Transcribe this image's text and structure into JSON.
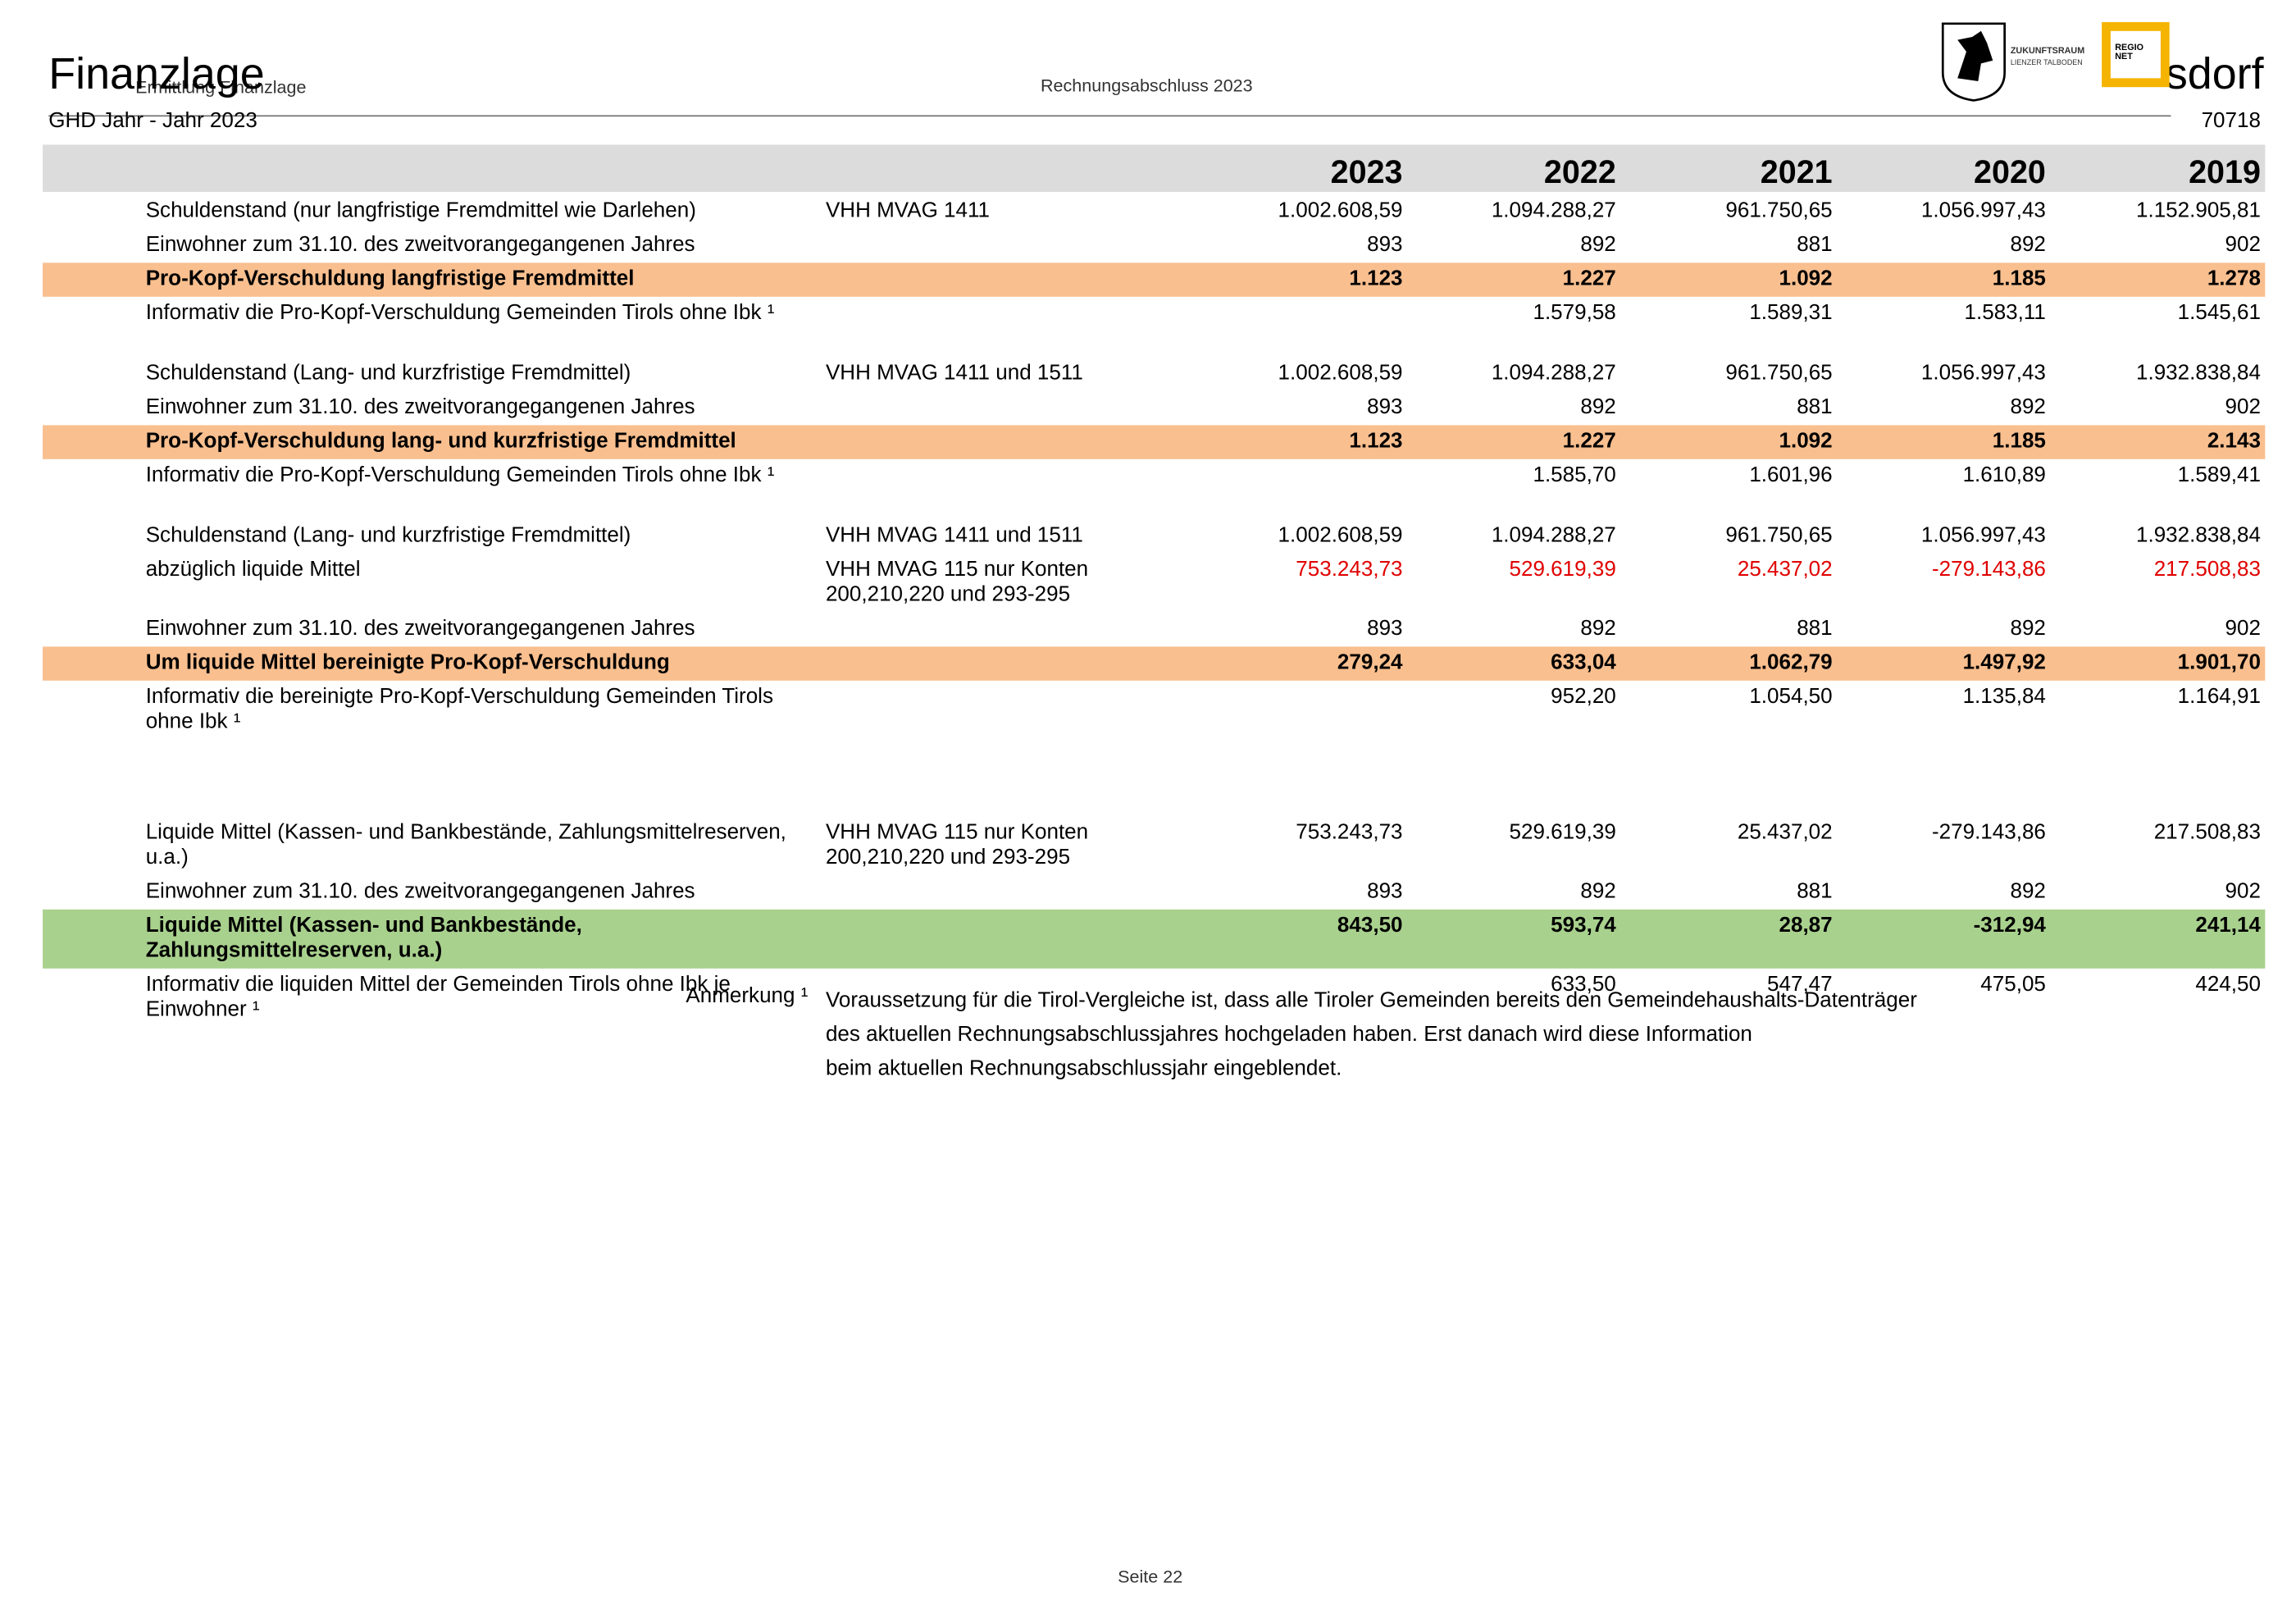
{
  "header": {
    "title": "Finanzlage",
    "breadcrumb": "Ermittlung Finanzlage",
    "report": "Rechnungsabschluss 2023",
    "subtitle": "GHD Jahr - Jahr 2023",
    "municipality": "sdorf",
    "code": "70718",
    "logo_text_1": "ZUKUNFTSRAUM",
    "logo_text_2": "LIENZER TALBODEN",
    "logo_text_3": "REGIO NET"
  },
  "table": {
    "years": [
      "2023",
      "2022",
      "2021",
      "2020",
      "2019"
    ],
    "sections": [
      {
        "rows": [
          {
            "label": "Schuldenstand (nur langfristige Fremdmittel wie Darlehen)",
            "ref": "VHH MVAG 1411",
            "style": "plain",
            "values": [
              "1.002.608,59",
              "1.094.288,27",
              "961.750,65",
              "1.056.997,43",
              "1.152.905,81"
            ]
          },
          {
            "label": "Einwohner zum 31.10. des zweitvorangegangenen Jahres",
            "style": "plain",
            "values": [
              "893",
              "892",
              "881",
              "892",
              "902"
            ]
          },
          {
            "label": "Pro-Kopf-Verschuldung langfristige Fremdmittel",
            "style": "orange",
            "values": [
              "1.123",
              "1.227",
              "1.092",
              "1.185",
              "1.278"
            ]
          },
          {
            "label": "Informativ die Pro-Kopf-Verschuldung Gemeinden Tirols ohne Ibk ¹",
            "style": "plain",
            "values": [
              null,
              "1.579,58",
              "1.589,31",
              "1.583,11",
              "1.545,61"
            ]
          }
        ]
      },
      {
        "rows": [
          {
            "label": "Schuldenstand (Lang- und kurzfristige Fremdmittel)",
            "ref": "VHH MVAG 1411 und 1511",
            "style": "plain",
            "values": [
              "1.002.608,59",
              "1.094.288,27",
              "961.750,65",
              "1.056.997,43",
              "1.932.838,84"
            ]
          },
          {
            "label": "Einwohner zum 31.10. des zweitvorangegangenen Jahres",
            "style": "plain",
            "values": [
              "893",
              "892",
              "881",
              "892",
              "902"
            ]
          },
          {
            "label": "Pro-Kopf-Verschuldung lang- und kurzfristige Fremdmittel",
            "style": "orange",
            "values": [
              "1.123",
              "1.227",
              "1.092",
              "1.185",
              "2.143"
            ]
          },
          {
            "label": "Informativ die Pro-Kopf-Verschuldung Gemeinden Tirols ohne Ibk ¹",
            "style": "plain",
            "values": [
              null,
              "1.585,70",
              "1.601,96",
              "1.610,89",
              "1.589,41"
            ]
          }
        ]
      },
      {
        "rows": [
          {
            "label": "Schuldenstand (Lang- und kurzfristige Fremdmittel)",
            "ref": "VHH MVAG 1411 und 1511",
            "style": "plain",
            "values": [
              "1.002.608,59",
              "1.094.288,27",
              "961.750,65",
              "1.056.997,43",
              "1.932.838,84"
            ]
          },
          {
            "label": "abzüglich liquide Mittel",
            "ref": "VHH MVAG 115 nur Konten 200,210,220 und 293-295",
            "style": "red",
            "values": [
              "753.243,73",
              "529.619,39",
              "25.437,02",
              "-279.143,86",
              "217.508,83"
            ]
          },
          {
            "label": "Einwohner zum 31.10. des zweitvorangegangenen Jahres",
            "style": "plain",
            "values": [
              "893",
              "892",
              "881",
              "892",
              "902"
            ]
          },
          {
            "label": "Um liquide Mittel bereinigte Pro-Kopf-Verschuldung",
            "style": "orange",
            "values": [
              "279,24",
              "633,04",
              "1.062,79",
              "1.497,92",
              "1.901,70"
            ]
          },
          {
            "label": "Informativ die bereinigte Pro-Kopf-Verschuldung Gemeinden Tirols ohne Ibk ¹",
            "style": "plain",
            "values": [
              null,
              "952,20",
              "1.054,50",
              "1.135,84",
              "1.164,91"
            ]
          }
        ]
      },
      {
        "rows": [
          {
            "label": "Liquide Mittel (Kassen- und Bankbestände, Zahlungsmittelreserven, u.a.)",
            "ref": "VHH MVAG 115 nur Konten 200,210,220 und 293-295",
            "style": "plain",
            "values": [
              "753.243,73",
              "529.619,39",
              "25.437,02",
              "-279.143,86",
              "217.508,83"
            ]
          },
          {
            "label": "Einwohner zum 31.10. des zweitvorangegangenen Jahres",
            "style": "plain",
            "values": [
              "893",
              "892",
              "881",
              "892",
              "902"
            ]
          },
          {
            "label": "Liquide Mittel (Kassen- und Bankbestände, Zahlungsmittelreserven, u.a.)",
            "style": "green",
            "values": [
              "843,50",
              "593,74",
              "28,87",
              "-312,94",
              "241,14"
            ]
          },
          {
            "label": "Informativ die liquiden Mittel der Gemeinden Tirols ohne Ibk je Einwohner ¹",
            "style": "plain",
            "values": [
              null,
              "633,50",
              "547,47",
              "475,05",
              "424,50"
            ]
          }
        ]
      }
    ]
  },
  "note": {
    "label": "Anmerkung ¹",
    "lines": [
      "Voraussetzung für die Tirol-Vergleiche ist, dass alle Tiroler Gemeinden bereits den Gemeindehaushalts-Datenträger",
      "des aktuellen Rechnungsabschlussjahres hochgeladen haben. Erst danach wird diese Information",
      "beim aktuellen Rechnungsabschlussjahr eingeblendet."
    ]
  },
  "footer": {
    "page": "Seite 22"
  }
}
